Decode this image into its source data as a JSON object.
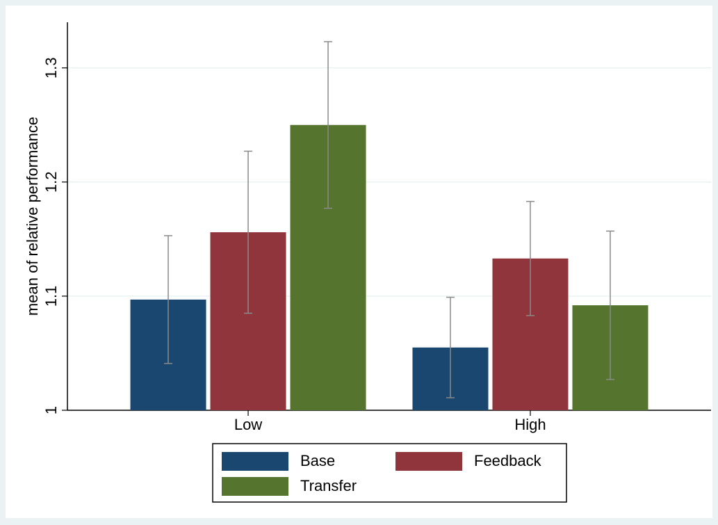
{
  "chart_data": {
    "type": "bar",
    "y_label": "mean of relative performance",
    "categories": [
      "Low",
      "High"
    ],
    "series": [
      {
        "name": "Base",
        "color": "#1a476f",
        "values": [
          1.097,
          1.055
        ],
        "errors": [
          0.056,
          0.044
        ]
      },
      {
        "name": "Feedback",
        "color": "#90353b",
        "values": [
          1.156,
          1.133
        ],
        "errors": [
          0.071,
          0.05
        ]
      },
      {
        "name": "Transfer",
        "color": "#55752f",
        "values": [
          1.25,
          1.092
        ],
        "errors": [
          0.073,
          0.065
        ]
      }
    ],
    "ylim": [
      1,
      1.34
    ],
    "yticks": [
      1,
      1.1,
      1.2,
      1.3
    ],
    "grid": true,
    "legend": "bottom"
  }
}
